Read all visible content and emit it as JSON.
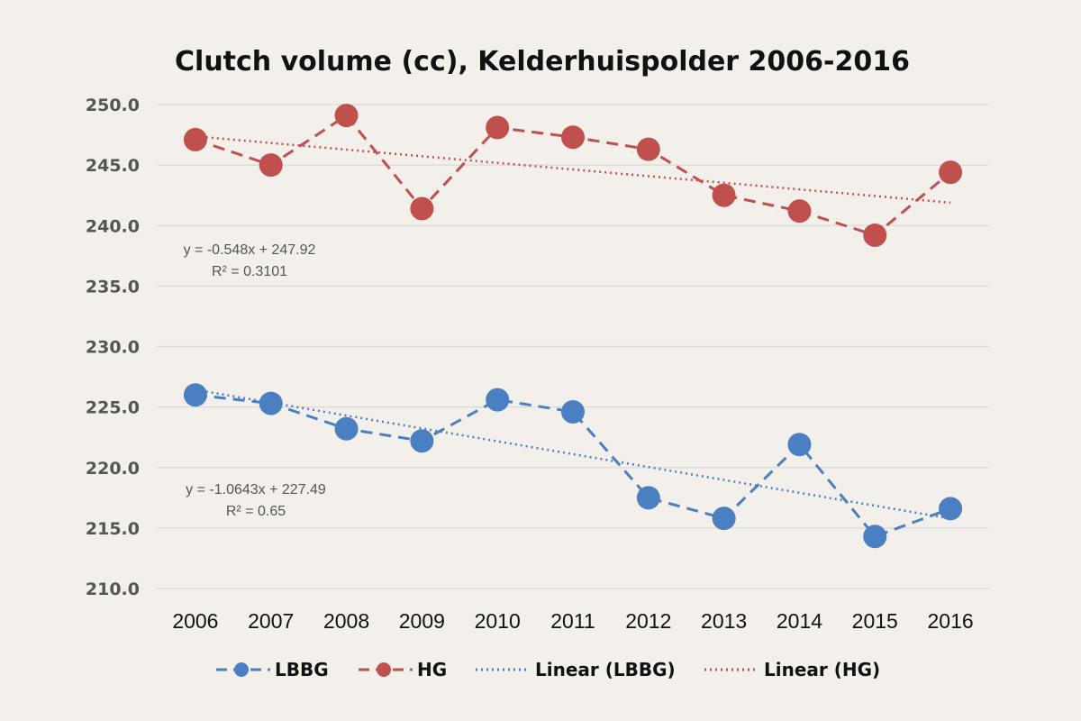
{
  "chart_data": {
    "type": "line",
    "title": "Clutch volume (cc), Kelderhuispolder  2006-2016",
    "xlabel": "",
    "ylabel": "",
    "ylim": [
      210,
      250
    ],
    "yticks": [
      "210.0",
      "215.0",
      "220.0",
      "225.0",
      "230.0",
      "235.0",
      "240.0",
      "245.0",
      "250.0"
    ],
    "categories": [
      "2006",
      "2007",
      "2008",
      "2009",
      "2010",
      "2011",
      "2012",
      "2013",
      "2014",
      "2015",
      "2016"
    ],
    "grid": true,
    "legend_position": "bottom",
    "series": [
      {
        "name": "LBBG",
        "color": "#4a7fc1",
        "style": "dashed-markers",
        "values": [
          226.0,
          225.3,
          223.2,
          222.2,
          225.6,
          224.6,
          217.5,
          215.8,
          221.9,
          214.3,
          216.6
        ]
      },
      {
        "name": "HG",
        "color": "#c0504d",
        "style": "dashed-markers",
        "values": [
          247.1,
          245.0,
          249.1,
          241.4,
          248.1,
          247.3,
          246.3,
          242.5,
          241.2,
          239.2,
          244.4
        ]
      }
    ],
    "trendlines": [
      {
        "name": "Linear (LBBG)",
        "of": "LBBG",
        "color": "#4a7fc1",
        "slope": -1.0643,
        "intercept": 227.49,
        "equation": "y = -1.0643x + 227.49",
        "r2": "R² = 0.65"
      },
      {
        "name": "Linear (HG)",
        "of": "HG",
        "color": "#c0504d",
        "slope": -0.548,
        "intercept": 247.92,
        "equation": "y = -0.548x + 247.92",
        "r2": "R² = 0.3101"
      }
    ]
  }
}
